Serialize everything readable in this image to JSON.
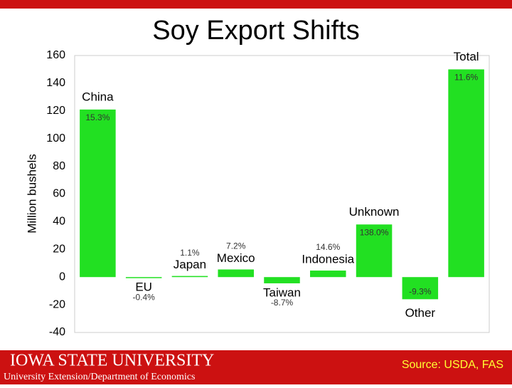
{
  "chart_data": {
    "type": "bar",
    "title": "Soy Export Shifts",
    "y_label": "Million bushels",
    "categories": [
      "China",
      "EU",
      "Japan",
      "Mexico",
      "Taiwan",
      "Indonesia",
      "Unknown",
      "Other",
      "Total"
    ],
    "values": [
      121,
      -0.5,
      0.8,
      5.5,
      -4.5,
      4.7,
      38,
      -16,
      150
    ],
    "percent_labels": [
      "15.3%",
      "-0.4%",
      "1.1%",
      "7.2%",
      "-8.7%",
      "14.6%",
      "138.0%",
      "-9.3%",
      "11.6%"
    ],
    "color": "#22e022",
    "ylim": [
      -40,
      160
    ],
    "yticks": [
      -40,
      -20,
      0,
      20,
      40,
      60,
      80,
      100,
      120,
      140,
      160
    ],
    "grid": false
  },
  "footer": {
    "university": "IOWA STATE UNIVERSITY",
    "department": "University Extension/Department of Economics",
    "source": "Source: USDA, FAS"
  }
}
